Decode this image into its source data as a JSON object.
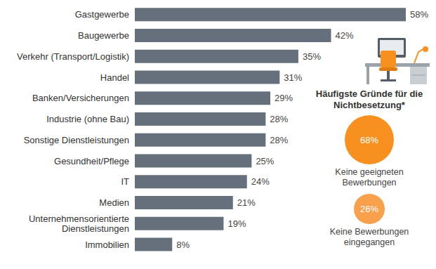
{
  "chart_data": {
    "type": "bar",
    "orientation": "horizontal",
    "categories": [
      "Gastgewerbe",
      "Baugewerbe",
      "Verkehr (Transport/Logistik)",
      "Handel",
      "Banken/Versicherungen",
      "Industrie (ohne Bau)",
      "Sonstige Dienstleistungen",
      "Gesundheit/Pflege",
      "IT",
      "Medien",
      "Unternehmensorientierte Dienstleistungen",
      "Immobilien"
    ],
    "values": [
      58,
      42,
      35,
      31,
      29,
      28,
      28,
      25,
      24,
      21,
      19,
      8
    ],
    "value_labels": [
      "58%",
      "42%",
      "35%",
      "31%",
      "29%",
      "28%",
      "28%",
      "25%",
      "24%",
      "21%",
      "19%",
      "8%"
    ],
    "color": "#66707c",
    "data_labels": true,
    "tick_labels": "y",
    "grid": false
  },
  "side_panel": {
    "title": "Häufigste Gründe für die Nichtbesetzung*",
    "items": [
      {
        "value": 68,
        "value_label": "68%",
        "label": "Keine geeigneten Bewerbungen",
        "color": "#f7901e"
      },
      {
        "value": 26,
        "value_label": "26%",
        "label": "Keine Bewerbungen eingegangen",
        "color": "#f8a04c"
      }
    ]
  }
}
